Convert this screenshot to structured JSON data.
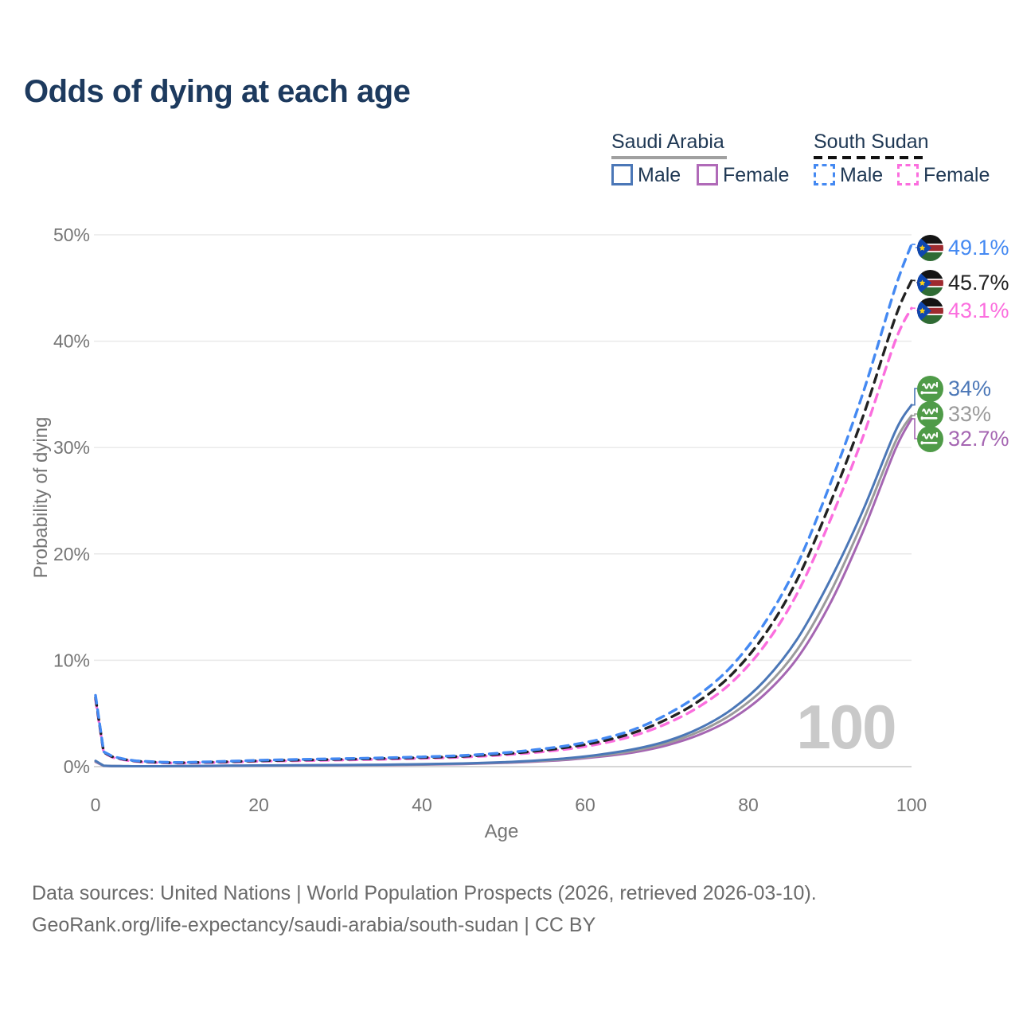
{
  "title": "Odds of dying at each age",
  "watermark_age": "100",
  "legend": {
    "saudi_arabia": {
      "label": "Saudi Arabia",
      "male_label": "Male",
      "female_label": "Female"
    },
    "south_sudan": {
      "label": "South Sudan",
      "male_label": "Male",
      "female_label": "Female"
    }
  },
  "axes": {
    "y_title": "Probability of dying",
    "x_title": "Age"
  },
  "footer": {
    "line1": "Data sources: United Nations | World Population Prospects (2026, retrieved 2026-03-10).",
    "line2": "GeoRank.org/life-expectancy/saudi-arabia/south-sudan | CC BY"
  },
  "colors": {
    "saudi_male": "#4b77b7",
    "saudi_combined": "#9b9b9b",
    "saudi_female": "#a566b2",
    "south_sudan_male": "#4489f2",
    "south_sudan_combined": "#222222",
    "south_sudan_female": "#fb6ede",
    "title": "#1d3a5e",
    "tick": "#757575",
    "grid": "#e8e8e8"
  },
  "chart_data": {
    "type": "line",
    "title": "Odds of dying at each age",
    "xlabel": "Age",
    "ylabel": "Probability of dying",
    "xlim": [
      0,
      100
    ],
    "ylim": [
      0,
      50
    ],
    "grid": "horizontal",
    "legend_position": "top-right",
    "y_tick_labels": [
      "0%",
      "10%",
      "20%",
      "30%",
      "40%",
      "50%"
    ],
    "x_tick_labels": [
      "0",
      "20",
      "40",
      "60",
      "80",
      "100"
    ],
    "ages": [
      0,
      1,
      2,
      3,
      4,
      5,
      6,
      8,
      10,
      12,
      15,
      18,
      20,
      25,
      30,
      35,
      40,
      45,
      50,
      54,
      58,
      62,
      66,
      70,
      74,
      78,
      82,
      86,
      90,
      94,
      98,
      100
    ],
    "series": [
      {
        "id": "saudi-arabia-female",
        "name": "Saudi Arabia Female",
        "country": "saudi-arabia",
        "dashed": false,
        "color": "#a566b2",
        "end_label": "32.7%",
        "end_value": 32.7,
        "values": [
          0.45,
          0.075,
          0.05,
          0.043,
          0.038,
          0.035,
          0.035,
          0.035,
          0.043,
          0.05,
          0.068,
          0.085,
          0.09,
          0.11,
          0.13,
          0.15,
          0.19,
          0.25,
          0.35,
          0.48,
          0.66,
          0.95,
          1.35,
          2.0,
          3.0,
          4.5,
          6.8,
          10.2,
          15.3,
          22.0,
          29.8,
          32.7
        ]
      },
      {
        "id": "saudi-arabia-combined",
        "name": "Saudi Arabia",
        "country": "saudi-arabia",
        "dashed": false,
        "color": "#9b9b9b",
        "end_label": "33%",
        "end_value": 33.0,
        "values": [
          0.5,
          0.085,
          0.055,
          0.047,
          0.042,
          0.038,
          0.038,
          0.038,
          0.047,
          0.056,
          0.075,
          0.093,
          0.1,
          0.12,
          0.14,
          0.17,
          0.21,
          0.28,
          0.39,
          0.53,
          0.73,
          1.05,
          1.5,
          2.2,
          3.3,
          4.95,
          7.4,
          11.0,
          16.3,
          23.0,
          30.5,
          33.0
        ]
      },
      {
        "id": "saudi-arabia-male",
        "name": "Saudi Arabia Male",
        "country": "saudi-arabia",
        "dashed": false,
        "color": "#4b77b7",
        "end_label": "34%",
        "end_value": 34.0,
        "values": [
          0.55,
          0.09,
          0.06,
          0.05,
          0.045,
          0.04,
          0.04,
          0.04,
          0.05,
          0.06,
          0.08,
          0.1,
          0.11,
          0.13,
          0.15,
          0.18,
          0.23,
          0.3,
          0.42,
          0.58,
          0.8,
          1.15,
          1.65,
          2.4,
          3.6,
          5.4,
          8.1,
          12.0,
          17.5,
          24.0,
          31.5,
          34.0
        ]
      },
      {
        "id": "south-sudan-female",
        "name": "South Sudan Female",
        "country": "south-sudan",
        "dashed": true,
        "color": "#fb6ede",
        "end_label": "43.1%",
        "end_value": 43.1,
        "values": [
          6.3,
          1.3,
          0.9,
          0.71,
          0.58,
          0.48,
          0.43,
          0.37,
          0.34,
          0.36,
          0.4,
          0.46,
          0.5,
          0.56,
          0.62,
          0.69,
          0.78,
          0.89,
          1.1,
          1.34,
          1.67,
          2.17,
          2.92,
          4.05,
          5.65,
          7.95,
          11.4,
          16.3,
          23.1,
          30.9,
          40.0,
          43.1
        ]
      },
      {
        "id": "south-sudan-combined",
        "name": "South Sudan",
        "country": "south-sudan",
        "dashed": true,
        "color": "#222222",
        "end_label": "45.7%",
        "end_value": 45.7,
        "values": [
          6.5,
          1.35,
          0.95,
          0.76,
          0.62,
          0.52,
          0.47,
          0.4,
          0.37,
          0.39,
          0.44,
          0.5,
          0.55,
          0.62,
          0.69,
          0.76,
          0.85,
          0.97,
          1.2,
          1.47,
          1.83,
          2.38,
          3.2,
          4.45,
          6.2,
          8.7,
          12.4,
          17.6,
          24.7,
          32.8,
          42.2,
          45.7
        ]
      },
      {
        "id": "south-sudan-male",
        "name": "South Sudan Male",
        "country": "south-sudan",
        "dashed": true,
        "color": "#4489f2",
        "end_label": "49.1%",
        "end_value": 49.1,
        "values": [
          6.7,
          1.4,
          1.0,
          0.8,
          0.65,
          0.55,
          0.5,
          0.43,
          0.4,
          0.42,
          0.48,
          0.55,
          0.6,
          0.68,
          0.75,
          0.82,
          0.92,
          1.05,
          1.3,
          1.6,
          2.0,
          2.6,
          3.5,
          4.9,
          6.8,
          9.5,
          13.5,
          19.0,
          26.5,
          35.0,
          45.0,
          49.1
        ]
      }
    ]
  }
}
